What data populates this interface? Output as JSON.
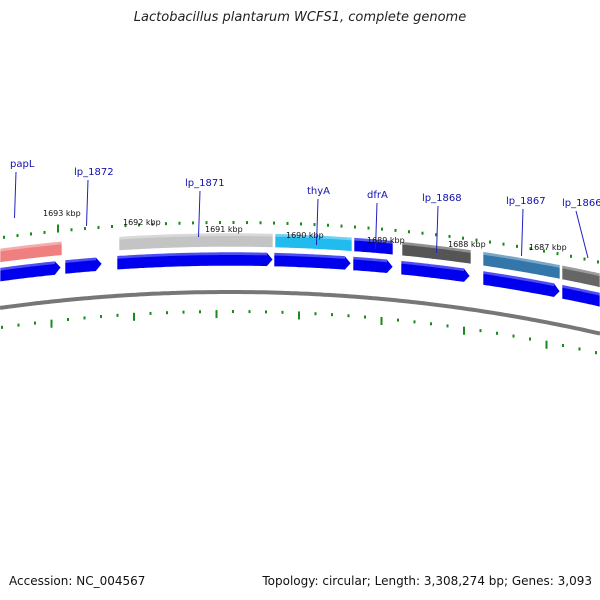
{
  "title": "Lactobacillus plantarum WCFS1, complete genome",
  "footer": {
    "accession": "Accession: NC_004567",
    "summary": "Topology: circular; Length: 3,308,274 bp; Genes: 3,093"
  },
  "colors": {
    "cds": "#0000ee",
    "scale_ticks": "#1a8a1a",
    "backbone": "#777777",
    "leader_lines": "#2020c0"
  },
  "genes": [
    {
      "label": "papL",
      "color": "#f08080"
    },
    {
      "label": "lp_1872",
      "color": null
    },
    {
      "label": "lp_1871",
      "color": "#c4c4c4"
    },
    {
      "label": "thyA",
      "color": "#22bbee"
    },
    {
      "label": "dfrA",
      "color": "#0000ee"
    },
    {
      "label": "lp_1868",
      "color": "#555555"
    },
    {
      "label": "lp_1867",
      "color": "#3377aa"
    },
    {
      "label": "lp_1866",
      "color": "#666666"
    }
  ],
  "scale_labels": [
    "1693 kbp",
    "1692 kbp",
    "1691 kbp",
    "1690 kbp",
    "1689 kbp",
    "1688 kbp",
    "1687 kbp"
  ]
}
